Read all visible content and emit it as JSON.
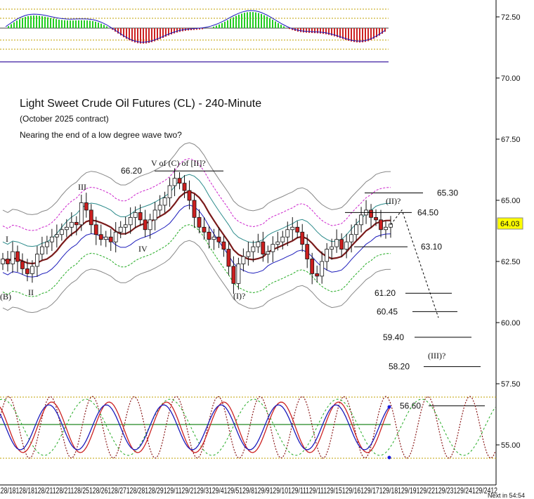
{
  "header": {
    "title": "Light Sweet Crude Oil Futures (CL) - 240-Minute",
    "contract": "(October 2025 contract)",
    "note": "Nearing the end of a low degree wave two?"
  },
  "footer": {
    "timer": "Next in 54:54"
  },
  "colors": {
    "bull": "#ffffff",
    "bear": "#cc1f1f",
    "ma": "#7a1a1a",
    "ma_blue": "#1b1bbb",
    "band_teal": "#2a8a8a",
    "band_magenta": "#cc22cc",
    "band_green": "#22aa22",
    "band_gray": "#888888",
    "osc_green": "#22cc22",
    "osc_red": "#cc2222",
    "price_box": "#ffff00"
  },
  "chart_data": {
    "type": "candlestick",
    "title": "Light Sweet Crude Oil Futures (CL) - 240-Minute",
    "y_axis": {
      "ticks": [
        "72.50",
        "70.00",
        "67.50",
        "65.00",
        "62.50",
        "60.00",
        "57.50",
        "55.00"
      ],
      "range": [
        54.0,
        73.0
      ],
      "side": "right"
    },
    "last_price": "64.03",
    "x_axis": {
      "ticks": [
        "8/18",
        "8/18",
        "8/18",
        "8/18",
        "8/18",
        "8/18",
        "8/18",
        "8/18",
        "8/18",
        "8/18",
        "8/18",
        "8/18",
        "8/18",
        "8/18",
        "8/18",
        "8/18",
        "8/18",
        "8/18",
        "8/18",
        "8/18",
        "8/18",
        "8/18",
        "8/18",
        "8/18",
        "8/18",
        "8/18",
        "8/18",
        "8/18",
        "8/18",
        "8/18",
        "8/18",
        "8/18",
        "8/18",
        "8/18",
        "8/18",
        "8/18",
        "8/18",
        "8/18",
        "8/18",
        "8/18",
        "8/18",
        "8/18",
        "8/18",
        "8/18",
        "8/18",
        "8/18",
        "8/18",
        "8/18",
        "8/18",
        "8/18",
        "8/18",
        "8/18",
        "8/18",
        "8/18",
        "8/18",
        "8/18",
        "8/18",
        "8/18",
        "8/18",
        "8/18"
      ]
    },
    "x_row": "012 8/18 012 8/18 012 8/21 012 8/21 012 8/25 012 8/26 012 8/27 012 8/28 012 8/29 012 9/1 012 9/2 012 9/3 012 9/4 012 9/5 012 9/8 012 9/9 012 9/10 012 9/11 012 9/11 012 9/15 012 9/16 012 9/17 012 9/18 012 9/19 012 9/22 012 9/23 012 9/24 012 9/24 012",
    "x_labels": [
      "12",
      "8/18",
      "12",
      "8/18",
      "12",
      "8/21",
      "12",
      "8/21",
      "12",
      "8/25",
      "12",
      "8/26",
      "12",
      "8/27",
      "12",
      "8/28",
      "12",
      "8/29",
      "12",
      "9/1",
      "12",
      "9/2",
      "12",
      "9/3",
      "12",
      "9/4",
      "12",
      "9/5",
      "12",
      "9/8",
      "12",
      "9/9",
      "12",
      "9/10",
      "12",
      "9/11",
      "12",
      "9/11",
      "12",
      "9/15",
      "12",
      "9/16",
      "12",
      "9/17",
      "12",
      "9/18",
      "12",
      "9/19",
      "12",
      "9/22",
      "12",
      "9/23",
      "12",
      "9/24",
      "12",
      "9/24",
      "12"
    ],
    "price_levels": [
      {
        "label": "65.30",
        "value": 65.3
      },
      {
        "label": "64.50",
        "value": 64.5
      },
      {
        "label": "63.10",
        "value": 63.1
      },
      {
        "label": "61.20",
        "value": 61.2
      },
      {
        "label": "60.45",
        "value": 60.45
      },
      {
        "label": "59.40",
        "value": 59.4
      },
      {
        "label": "58.20",
        "value": 58.2
      },
      {
        "label": "56.60",
        "value": 56.6
      },
      {
        "label": "66.20",
        "value": 66.2
      }
    ],
    "wave_labels": [
      "I",
      "II",
      "III",
      "IV",
      "V of (C) of [II]?",
      "(I)?",
      "(II)?",
      "(III)?",
      "(B)"
    ],
    "closes": [
      62.6,
      62.4,
      62.9,
      62.5,
      62.2,
      62.0,
      62.3,
      62.8,
      63.1,
      63.3,
      63.5,
      63.6,
      63.8,
      63.9,
      64.1,
      64.0,
      64.9,
      64.6,
      64.0,
      63.6,
      63.4,
      63.5,
      63.3,
      63.7,
      63.9,
      64.0,
      64.3,
      64.5,
      64.2,
      63.8,
      64.2,
      64.6,
      64.8,
      65.1,
      65.6,
      65.9,
      65.7,
      65.4,
      65.0,
      64.3,
      63.9,
      63.7,
      63.4,
      63.5,
      63.3,
      63.0,
      62.3,
      61.6,
      62.4,
      62.7,
      62.9,
      63.1,
      63.3,
      62.8,
      62.9,
      63.2,
      63.3,
      63.5,
      63.8,
      63.9,
      63.7,
      63.2,
      62.6,
      62.0,
      61.9,
      62.5,
      63.0,
      63.1,
      63.4,
      63.0,
      63.3,
      63.6,
      64.0,
      64.4,
      64.6,
      64.3,
      64.2,
      63.8,
      63.9,
      64.03
    ]
  }
}
